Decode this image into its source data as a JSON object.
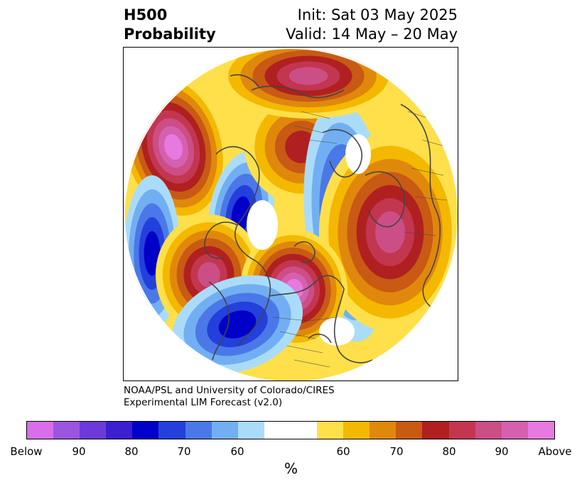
{
  "title": {
    "left_line1": "H500",
    "left_line2": "Probability",
    "right_line1": "Init: Sat 03 May 2025",
    "right_line2": "Valid: 14 May – 20 May"
  },
  "credit": {
    "line1": "NOAA/PSL and University of Colorado/CIRES",
    "line2": "Experimental LIM Forecast (v2.0)"
  },
  "colorbar": {
    "colors": [
      "#d96fe8",
      "#9b55e0",
      "#6b3ad8",
      "#3b1fd1",
      "#0000c8",
      "#2340dc",
      "#4b78e8",
      "#72aff2",
      "#aadcfa",
      "#ffffff",
      "#ffffff",
      "#ffe04a",
      "#f4b800",
      "#e0880c",
      "#c85a14",
      "#b02020",
      "#c23650",
      "#cc4e86",
      "#d660b0",
      "#e67ae0"
    ],
    "ticks": [
      "Below",
      "90",
      "80",
      "70",
      "60",
      "60",
      "70",
      "80",
      "90",
      "Above"
    ],
    "unit": "%"
  },
  "map": {
    "anomalies": [
      {
        "sign": "above",
        "peak": "above"
      },
      {
        "sign": "below",
        "peak": 80
      },
      {
        "sign": "above",
        "peak": 80
      },
      {
        "sign": "below",
        "peak": 80
      },
      {
        "sign": "above",
        "peak": 90
      },
      {
        "sign": "below",
        "peak": 80
      },
      {
        "sign": "above",
        "peak": 90
      },
      {
        "sign": "above",
        "peak": "above"
      },
      {
        "sign": "below",
        "peak": 80
      },
      {
        "sign": "above",
        "peak": 90
      }
    ]
  }
}
